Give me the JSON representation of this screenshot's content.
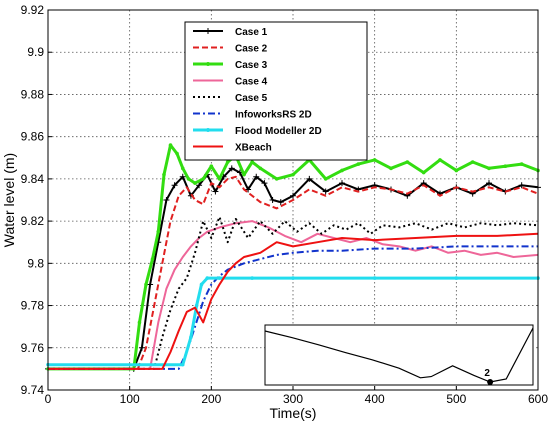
{
  "chart_data": {
    "type": "line",
    "xlabel": "Time(s)",
    "ylabel": "Water level (m)",
    "xlim": [
      0,
      600
    ],
    "ylim": [
      9.74,
      9.92
    ],
    "xticks": [
      "0",
      "100",
      "200",
      "300",
      "400",
      "500",
      "600"
    ],
    "yticks": [
      "9.74",
      "9.76",
      "9.78",
      "9.8",
      "9.82",
      "9.84",
      "9.86",
      "9.88",
      "9.9",
      "9.92"
    ],
    "grid": "dotted",
    "legend_position": "top-right",
    "series": [
      {
        "name": "Case 1",
        "color": "#000000",
        "style": "solid",
        "marker": "plus",
        "x": [
          0,
          105,
          115,
          125,
          135,
          145,
          155,
          165,
          175,
          185,
          195,
          205,
          215,
          225,
          235,
          245,
          255,
          265,
          275,
          285,
          300,
          320,
          340,
          360,
          380,
          400,
          420,
          440,
          460,
          480,
          500,
          520,
          540,
          560,
          580,
          600
        ],
        "y": [
          9.75,
          9.75,
          9.76,
          9.79,
          9.81,
          9.83,
          9.837,
          9.841,
          9.832,
          9.837,
          9.842,
          9.834,
          9.841,
          9.845,
          9.843,
          9.835,
          9.841,
          9.838,
          9.83,
          9.829,
          9.832,
          9.84,
          9.834,
          9.838,
          9.835,
          9.837,
          9.835,
          9.832,
          9.838,
          9.833,
          9.836,
          9.833,
          9.838,
          9.834,
          9.837,
          9.836
        ]
      },
      {
        "name": "Case 2",
        "color": "#e02020",
        "style": "dashed",
        "x": [
          0,
          110,
          120,
          130,
          140,
          150,
          160,
          170,
          180,
          190,
          200,
          210,
          220,
          230,
          240,
          260,
          280,
          300,
          320,
          340,
          360,
          380,
          400,
          420,
          440,
          460,
          480,
          500,
          520,
          540,
          560,
          580,
          600
        ],
        "y": [
          9.75,
          9.75,
          9.76,
          9.78,
          9.8,
          9.82,
          9.832,
          9.836,
          9.83,
          9.828,
          9.838,
          9.836,
          9.84,
          9.841,
          9.835,
          9.829,
          9.826,
          9.83,
          9.835,
          9.832,
          9.836,
          9.834,
          9.836,
          9.835,
          9.833,
          9.837,
          9.832,
          9.836,
          9.834,
          9.836,
          9.834,
          9.836,
          9.833
        ]
      },
      {
        "name": "Case 3",
        "color": "#33dd11",
        "style": "solid",
        "marker": "dot",
        "x": [
          0,
          105,
          112,
          120,
          128,
          135,
          142,
          150,
          158,
          165,
          172,
          180,
          190,
          200,
          210,
          220,
          230,
          240,
          250,
          260,
          280,
          300,
          320,
          340,
          360,
          380,
          400,
          420,
          440,
          460,
          480,
          500,
          520,
          540,
          560,
          580,
          600
        ],
        "y": [
          9.75,
          9.75,
          9.772,
          9.79,
          9.802,
          9.815,
          9.842,
          9.856,
          9.852,
          9.845,
          9.84,
          9.838,
          9.84,
          9.846,
          9.84,
          9.848,
          9.851,
          9.842,
          9.848,
          9.845,
          9.84,
          9.842,
          9.849,
          9.84,
          9.844,
          9.847,
          9.849,
          9.845,
          9.848,
          9.843,
          9.849,
          9.844,
          9.848,
          9.845,
          9.846,
          9.847,
          9.844
        ]
      },
      {
        "name": "Case 4",
        "color": "#ee6699",
        "style": "solid",
        "x": [
          0,
          125,
          135,
          145,
          155,
          165,
          175,
          185,
          195,
          210,
          230,
          250,
          270,
          290,
          310,
          330,
          350,
          370,
          390,
          410,
          430,
          450,
          470,
          490,
          510,
          530,
          550,
          570,
          600
        ],
        "y": [
          9.75,
          9.75,
          9.772,
          9.788,
          9.797,
          9.803,
          9.808,
          9.812,
          9.815,
          9.817,
          9.819,
          9.82,
          9.817,
          9.813,
          9.81,
          9.814,
          9.812,
          9.81,
          9.812,
          9.809,
          9.808,
          9.806,
          9.808,
          9.805,
          9.806,
          9.804,
          9.805,
          9.803,
          9.804
        ]
      },
      {
        "name": "Case 5",
        "color": "#000000",
        "style": "dotted",
        "x": [
          0,
          130,
          140,
          150,
          160,
          170,
          180,
          190,
          200,
          210,
          220,
          230,
          245,
          260,
          275,
          290,
          305,
          320,
          335,
          350,
          365,
          380,
          395,
          410,
          430,
          450,
          470,
          490,
          510,
          530,
          550,
          570,
          600
        ],
        "y": [
          9.75,
          9.75,
          9.765,
          9.778,
          9.788,
          9.793,
          9.805,
          9.82,
          9.812,
          9.822,
          9.81,
          9.821,
          9.812,
          9.82,
          9.814,
          9.82,
          9.815,
          9.819,
          9.814,
          9.818,
          9.816,
          9.819,
          9.814,
          9.818,
          9.817,
          9.819,
          9.816,
          9.819,
          9.817,
          9.819,
          9.818,
          9.819,
          9.818
        ]
      },
      {
        "name": "InfoworksRS 2D",
        "color": "#1133cc",
        "style": "dashdot",
        "x": [
          0,
          160,
          170,
          180,
          190,
          200,
          210,
          220,
          240,
          260,
          280,
          300,
          330,
          360,
          400,
          450,
          500,
          550,
          600
        ],
        "y": [
          9.75,
          9.75,
          9.758,
          9.77,
          9.782,
          9.79,
          9.794,
          9.797,
          9.8,
          9.802,
          9.804,
          9.805,
          9.806,
          9.806,
          9.807,
          9.807,
          9.808,
          9.808,
          9.808
        ]
      },
      {
        "name": "Flood Modeller 2D",
        "color": "#22ddee",
        "style": "solid",
        "marker": "dot",
        "x": [
          0,
          165,
          175,
          182,
          188,
          195,
          210,
          250,
          300,
          400,
          500,
          600
        ],
        "y": [
          9.752,
          9.752,
          9.765,
          9.78,
          9.79,
          9.793,
          9.793,
          9.793,
          9.793,
          9.793,
          9.793,
          9.793
        ]
      },
      {
        "name": "XBeach",
        "color": "#ee1111",
        "style": "solid",
        "x": [
          0,
          140,
          150,
          160,
          170,
          180,
          190,
          200,
          210,
          220,
          230,
          240,
          260,
          280,
          300,
          330,
          360,
          400,
          450,
          500,
          550,
          600
        ],
        "y": [
          9.75,
          9.75,
          9.758,
          9.768,
          9.777,
          9.779,
          9.772,
          9.783,
          9.79,
          9.796,
          9.8,
          9.803,
          9.805,
          9.81,
          9.808,
          9.81,
          9.812,
          9.811,
          9.812,
          9.813,
          9.813,
          9.814
        ]
      }
    ],
    "inset": {
      "label": "2",
      "profile_x": [
        0,
        10,
        20,
        30,
        40,
        50,
        58,
        62,
        70,
        78,
        84,
        90,
        100
      ],
      "profile_y": [
        0.9,
        0.79,
        0.67,
        0.54,
        0.42,
        0.28,
        0.12,
        0.14,
        0.32,
        0.16,
        0.05,
        0.1,
        0.95
      ],
      "marker_x": 84
    }
  }
}
